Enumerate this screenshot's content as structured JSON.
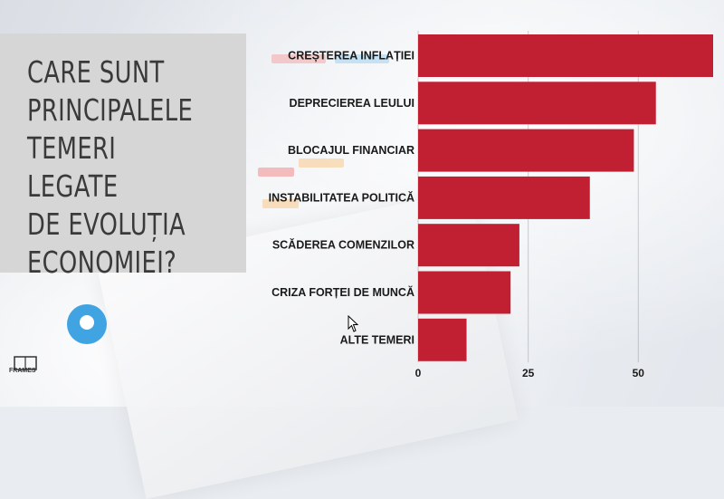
{
  "title": "CARE SUNT PRINCIPALELE TEMERI LEGATE DE EVOLUȚIA ECONOMIEI?",
  "logo": {
    "label": "FRAMES"
  },
  "colors": {
    "bar": "#c12033",
    "title_bg": "#d6d6d6",
    "text": "#1a1a1a"
  },
  "chart_data": {
    "type": "bar",
    "orientation": "horizontal",
    "title": "",
    "xlabel": "",
    "ylabel": "",
    "categories": [
      "CREȘTEREA INFLAȚIEI",
      "DEPRECIEREA LEULUI",
      "BLOCAJUL FINANCIAR",
      "INSTABILITATEA POLITICĂ",
      "SCĂDEREA COMENZILOR",
      "CRIZA FORȚEI DE MUNCĂ",
      "ALTE TEMERI"
    ],
    "values": [
      67,
      54,
      49,
      39,
      23,
      21,
      11
    ],
    "xlim": [
      0,
      67
    ],
    "xticks": [
      0,
      25,
      50
    ],
    "xtick_labels": [
      "0",
      "25",
      "50"
    ],
    "grid": true
  }
}
